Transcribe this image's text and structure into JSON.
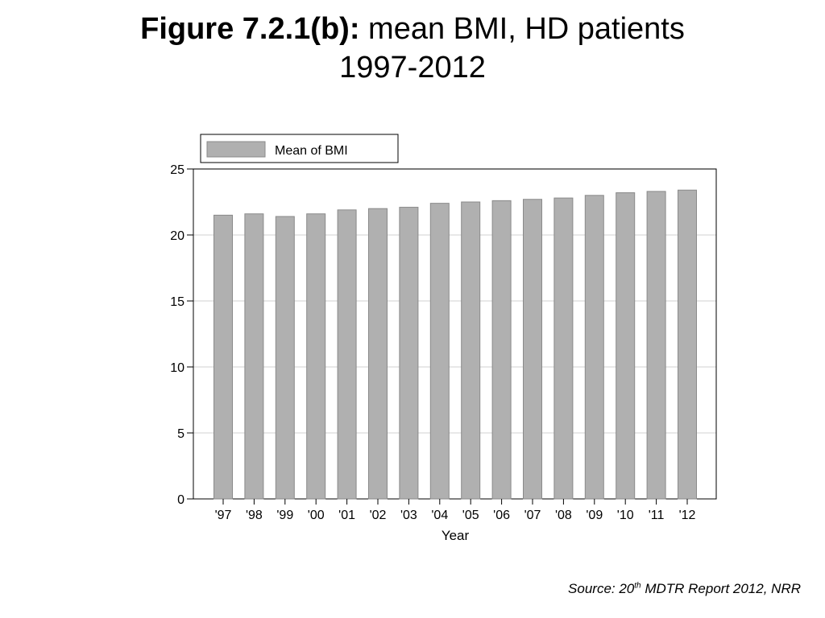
{
  "title": {
    "bold": "Figure 7.2.1(b):",
    "rest": " mean BMI, HD patients",
    "line2": "1997-2012"
  },
  "source": {
    "prefix": "Source: 20",
    "sup": "th",
    "suffix": " MDTR Report 2012, NRR"
  },
  "colors": {
    "bar_fill": "#b0b0b0",
    "bar_stroke": "#8a8a8a",
    "grid": "#d9d9d9",
    "axis": "#000000"
  },
  "chart_data": {
    "type": "bar",
    "categories": [
      "'97",
      "'98",
      "'99",
      "'00",
      "'01",
      "'02",
      "'03",
      "'04",
      "'05",
      "'06",
      "'07",
      "'08",
      "'09",
      "'10",
      "'11",
      "'12"
    ],
    "series": [
      {
        "name": "Mean of BMI",
        "values": [
          21.5,
          21.6,
          21.4,
          21.6,
          21.9,
          22.0,
          22.1,
          22.4,
          22.5,
          22.6,
          22.7,
          22.8,
          23.0,
          23.2,
          23.3,
          23.4
        ]
      }
    ],
    "xlabel": "Year",
    "ylabel": "",
    "ylim": [
      0,
      25
    ],
    "yticks": [
      0,
      5,
      10,
      15,
      20,
      25
    ],
    "grid": true,
    "legend_position": "top-left"
  }
}
